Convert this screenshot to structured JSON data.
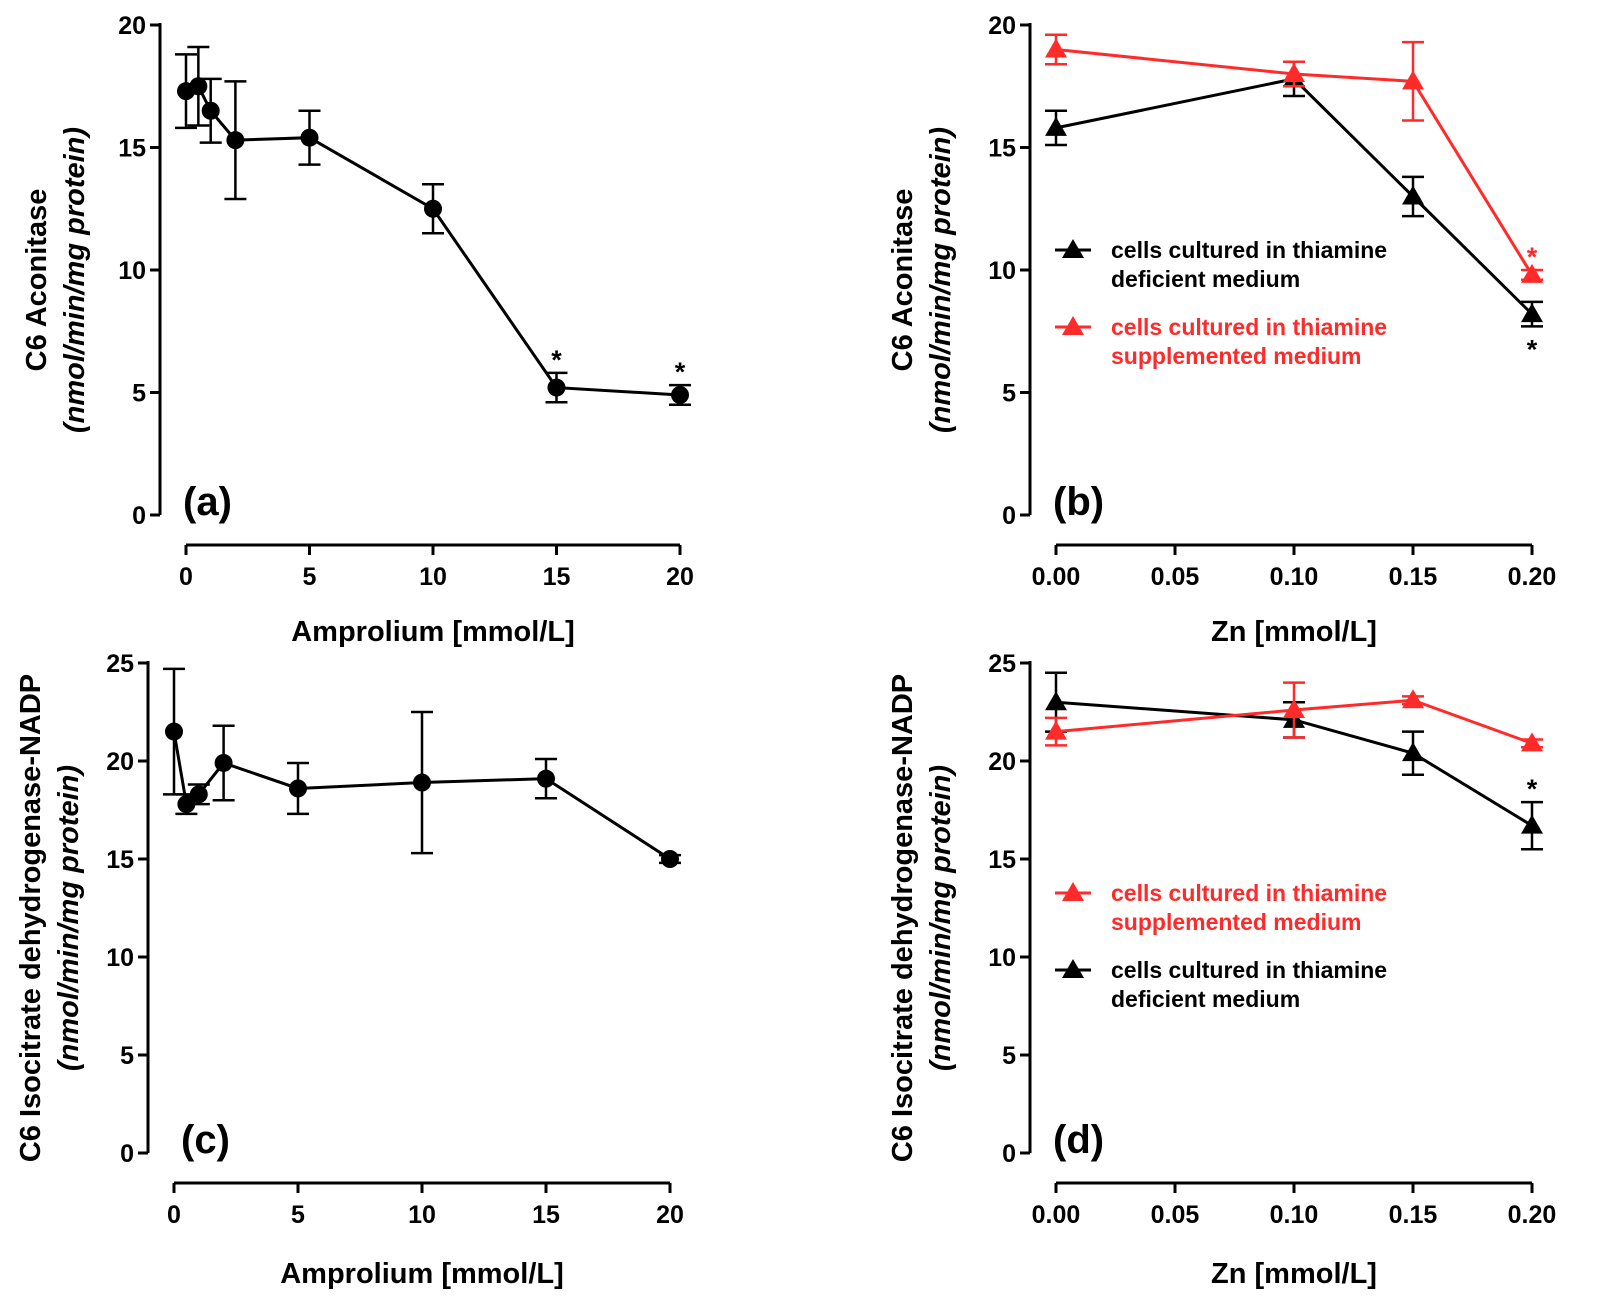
{
  "chart_data": [
    {
      "id": "a",
      "type": "line",
      "panel_label": "(a)",
      "xlabel": "Amprolium [mmol/L]",
      "ylabel": "C6 Aconitase",
      "ylabel_units": "(nmol/min/mg protein)",
      "xlim": [
        0,
        20
      ],
      "ylim": [
        0,
        20
      ],
      "xticks": [
        0,
        5,
        10,
        15,
        20
      ],
      "xtick_labels": [
        "0",
        "5",
        "10",
        "15",
        "20"
      ],
      "yticks": [
        0,
        5,
        10,
        15,
        20
      ],
      "ytick_labels": [
        "0",
        "5",
        "10",
        "15",
        "20"
      ],
      "series": [
        {
          "name": "Amprolium",
          "color": "#000000",
          "marker": "circle",
          "x": [
            0,
            0.5,
            1,
            2,
            5,
            10,
            15,
            20
          ],
          "y": [
            17.3,
            17.5,
            16.5,
            15.3,
            15.4,
            12.5,
            5.2,
            4.9
          ],
          "err": [
            1.5,
            1.6,
            1.3,
            2.4,
            1.1,
            1.0,
            0.6,
            0.4
          ],
          "stars": [
            "",
            "",
            "",
            "",
            "",
            "",
            "*",
            "*"
          ]
        }
      ],
      "legend": []
    },
    {
      "id": "b",
      "type": "line",
      "panel_label": "(b)",
      "xlabel": "Zn [mmol/L]",
      "ylabel": "C6 Aconitase",
      "ylabel_units": "(nmol/min/mg protein)",
      "xlim": [
        0,
        0.2
      ],
      "ylim": [
        0,
        20
      ],
      "xticks": [
        0,
        0.05,
        0.1,
        0.15,
        0.2
      ],
      "xtick_labels": [
        "0.00",
        "0.05",
        "0.10",
        "0.15",
        "0.20"
      ],
      "yticks": [
        0,
        5,
        10,
        15,
        20
      ],
      "ytick_labels": [
        "0",
        "5",
        "10",
        "15",
        "20"
      ],
      "series": [
        {
          "name": "cells cultured in thiamine deficient medium",
          "color": "#000000",
          "marker": "triangle",
          "x": [
            0,
            0.1,
            0.15,
            0.2
          ],
          "y": [
            15.8,
            17.8,
            13.0,
            8.2
          ],
          "err": [
            0.7,
            0.7,
            0.8,
            0.5
          ],
          "stars": [
            "",
            "",
            "",
            "*"
          ],
          "star_pos": "below"
        },
        {
          "name": "cells cultured in thiamine supplemented medium",
          "color": "#ff2a2a",
          "marker": "triangle",
          "x": [
            0,
            0.1,
            0.15,
            0.2
          ],
          "y": [
            19.0,
            18.0,
            17.7,
            9.8
          ],
          "err": [
            0.6,
            0.5,
            1.6,
            0.2
          ],
          "stars": [
            "",
            "",
            "",
            "*"
          ],
          "star_pos": "above"
        }
      ],
      "legend": [
        {
          "line1": "cells cultured in thiamine",
          "line2": "deficient medium",
          "color": "#000000"
        },
        {
          "line1": "cells cultured in thiamine",
          "line2": "supplemented medium",
          "color": "#ff2a2a"
        }
      ]
    },
    {
      "id": "c",
      "type": "line",
      "panel_label": "(c)",
      "xlabel": "Amprolium [mmol/L]",
      "ylabel": "C6 Isocitrate dehydrogenase-NADP",
      "ylabel_units": "(nmol/min/mg protein)",
      "xlim": [
        0,
        20
      ],
      "ylim": [
        0,
        25
      ],
      "xticks": [
        0,
        5,
        10,
        15,
        20
      ],
      "xtick_labels": [
        "0",
        "5",
        "10",
        "15",
        "20"
      ],
      "yticks": [
        0,
        5,
        10,
        15,
        20,
        25
      ],
      "ytick_labels": [
        "0",
        "5",
        "10",
        "15",
        "20",
        "25"
      ],
      "series": [
        {
          "name": "Amprolium",
          "color": "#000000",
          "marker": "circle",
          "x": [
            0,
            0.5,
            1,
            2,
            5,
            10,
            15,
            20
          ],
          "y": [
            21.5,
            17.8,
            18.3,
            19.9,
            18.6,
            18.9,
            19.1,
            15.0
          ],
          "err": [
            3.2,
            0.5,
            0.5,
            1.9,
            1.3,
            3.6,
            1.0,
            0.2
          ],
          "stars": [
            "",
            "",
            "",
            "",
            "",
            "",
            "",
            ""
          ]
        }
      ],
      "legend": []
    },
    {
      "id": "d",
      "type": "line",
      "panel_label": "(d)",
      "xlabel": "Zn [mmol/L]",
      "ylabel": "C6 Isocitrate dehydrogenase-NADP",
      "ylabel_units": "(nmol/min/mg protein)",
      "xlim": [
        0,
        0.2
      ],
      "ylim": [
        0,
        25
      ],
      "xticks": [
        0,
        0.05,
        0.1,
        0.15,
        0.2
      ],
      "xtick_labels": [
        "0.00",
        "0.05",
        "0.10",
        "0.15",
        "0.20"
      ],
      "yticks": [
        0,
        5,
        10,
        15,
        20,
        25
      ],
      "ytick_labels": [
        "0",
        "5",
        "10",
        "15",
        "20",
        "25"
      ],
      "series": [
        {
          "name": "cells cultured in thiamine deficient medium",
          "color": "#000000",
          "marker": "triangle",
          "x": [
            0,
            0.1,
            0.15,
            0.2
          ],
          "y": [
            23.0,
            22.1,
            20.4,
            16.7
          ],
          "err": [
            1.5,
            0.9,
            1.1,
            1.2
          ],
          "stars": [
            "",
            "",
            "",
            "*"
          ],
          "star_pos": "above"
        },
        {
          "name": "cells cultured in thiamine supplemented medium",
          "color": "#ff2a2a",
          "marker": "triangle",
          "x": [
            0,
            0.1,
            0.15,
            0.2
          ],
          "y": [
            21.5,
            22.6,
            23.1,
            20.9
          ],
          "err": [
            0.7,
            1.4,
            0.2,
            0.2
          ],
          "stars": [
            "",
            "",
            "",
            ""
          ]
        }
      ],
      "legend": [
        {
          "line1": "cells cultured in thiamine",
          "line2": "supplemented medium",
          "color": "#ff2a2a"
        },
        {
          "line1": "cells cultured in thiamine",
          "line2": "deficient medium",
          "color": "#000000"
        }
      ]
    }
  ]
}
